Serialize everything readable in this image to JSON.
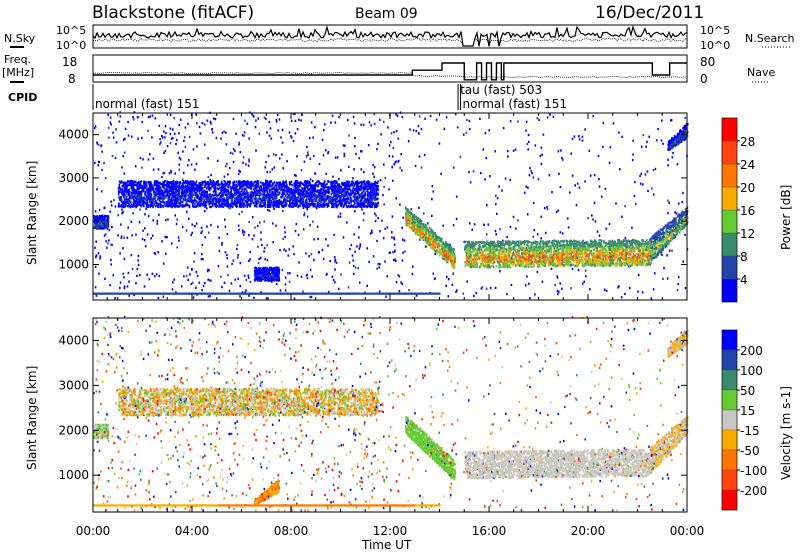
{
  "header": {
    "station": "Blackstone (fitACF)",
    "beam": "Beam 09",
    "date": "16/Dec/2011"
  },
  "noise_panel": {
    "left_label": "N.Sky",
    "right_label": "N.Search",
    "left_ticks": [
      "10^5",
      "10^0"
    ],
    "right_ticks": [
      "10^5",
      "10^0"
    ],
    "sky_level_log": 3.2,
    "search_level_log": 2.0
  },
  "freq_panel": {
    "left_label_1": "Freq.",
    "left_label_2": "[MHz]",
    "right_label": "Nave",
    "left_ticks": [
      "18",
      "8"
    ],
    "right_ticks": [
      "80",
      "0"
    ],
    "freq_steps": [
      [
        0,
        12.9,
        10.5
      ],
      [
        12.9,
        14.1,
        12.5
      ],
      [
        14.1,
        15.0,
        15.5
      ],
      [
        15.0,
        15.5,
        8.5
      ],
      [
        15.5,
        15.7,
        15.5
      ],
      [
        15.7,
        15.9,
        8.5
      ],
      [
        15.9,
        16.1,
        15.5
      ],
      [
        16.1,
        16.3,
        8.5
      ],
      [
        16.3,
        16.5,
        15.5
      ],
      [
        16.5,
        16.6,
        8.5
      ],
      [
        16.6,
        22.6,
        15.5
      ],
      [
        22.6,
        23.3,
        10.5
      ],
      [
        23.3,
        24,
        15.5
      ]
    ],
    "freq_range": [
      8,
      18
    ]
  },
  "cpid": {
    "label": "CPID",
    "segments": [
      {
        "start": 0,
        "label": "normal (fast) 151"
      },
      {
        "start": 14.75,
        "label": "tau (fast) 503"
      },
      {
        "start": 14.85,
        "label": "normal (fast) 151"
      }
    ]
  },
  "chart_data": [
    {
      "type": "heatmap",
      "name": "power",
      "ylabel": "Slant Range [km]",
      "ylim": [
        180,
        4500
      ],
      "xlim": [
        0,
        24
      ],
      "yticks": [
        "1000",
        "2000",
        "3000",
        "4000"
      ],
      "colorbar": {
        "label": "Power [dB]",
        "levels": [
          "4",
          "8",
          "12",
          "16",
          "20",
          "24",
          "28"
        ],
        "colors": [
          "#0000ff",
          "#2244aa",
          "#3a8a6e",
          "#66cc33",
          "#ffaa00",
          "#ff7700",
          "#ff4411",
          "#ff0000"
        ]
      },
      "echo_regions": [
        {
          "t": [
            12.6,
            14.6
          ],
          "r_low": [
            1900,
            850
          ],
          "r_high": [
            2300,
            1300
          ],
          "value": [
            2,
            7
          ]
        },
        {
          "t": [
            15.0,
            22.5
          ],
          "r_low": [
            900,
            950
          ],
          "r_high": [
            1500,
            1550
          ],
          "value": [
            2,
            7
          ]
        },
        {
          "t": [
            22.5,
            24.0
          ],
          "r_low": [
            1000,
            1900
          ],
          "r_high": [
            1600,
            2300
          ],
          "value": [
            1,
            5
          ]
        },
        {
          "t": [
            23.2,
            24.0
          ],
          "r_low": [
            3600,
            3900
          ],
          "r_high": [
            3800,
            4250
          ],
          "value": [
            0,
            2
          ]
        },
        {
          "t": [
            1.0,
            11.5
          ],
          "r_low": [
            2300,
            2300
          ],
          "r_high": [
            2900,
            2900
          ],
          "value": [
            0,
            1
          ]
        },
        {
          "t": [
            0.0,
            0.6
          ],
          "r_low": [
            1800,
            1800
          ],
          "r_high": [
            2100,
            2100
          ],
          "value": [
            0,
            2
          ]
        },
        {
          "t": [
            6.5,
            7.5
          ],
          "r_low": [
            600,
            600
          ],
          "r_high": [
            900,
            900
          ],
          "value": [
            0,
            1
          ]
        }
      ]
    },
    {
      "type": "heatmap",
      "name": "velocity",
      "ylabel": "Slant Range [km]",
      "ylim": [
        180,
        4500
      ],
      "xlim": [
        0,
        24
      ],
      "yticks": [
        "1000",
        "2000",
        "3000",
        "4000"
      ],
      "xticks": [
        "00:00",
        "04:00",
        "08:00",
        "12:00",
        "16:00",
        "20:00",
        "00:00"
      ],
      "xlabel": "Time UT",
      "colorbar": {
        "label": "Velocity [m s-1]",
        "levels": [
          "200",
          "100",
          "50",
          "15",
          "-15",
          "-50",
          "-100",
          "-200"
        ],
        "colors": [
          "#0000ff",
          "#2244aa",
          "#3a8a6e",
          "#66cc33",
          "#c8c8c0",
          "#ffaa00",
          "#ff7700",
          "#ff4411",
          "#ff0000"
        ]
      },
      "echo_regions": [
        {
          "t": [
            12.6,
            14.6
          ],
          "r_low": [
            1900,
            850
          ],
          "r_high": [
            2300,
            1300
          ],
          "value": [
            3,
            3
          ]
        },
        {
          "t": [
            15.0,
            22.5
          ],
          "r_low": [
            900,
            950
          ],
          "r_high": [
            1500,
            1550
          ],
          "value": [
            4,
            4
          ]
        },
        {
          "t": [
            22.5,
            24.0
          ],
          "r_low": [
            1000,
            1900
          ],
          "r_high": [
            1600,
            2300
          ],
          "value": [
            4,
            5
          ]
        },
        {
          "t": [
            23.2,
            24.0
          ],
          "r_low": [
            3600,
            3900
          ],
          "r_high": [
            3800,
            4250
          ],
          "value": [
            4,
            5
          ]
        },
        {
          "t": [
            1.0,
            11.5
          ],
          "r_low": [
            2300,
            2300
          ],
          "r_high": [
            2900,
            2900
          ],
          "value": [
            3,
            6
          ]
        },
        {
          "t": [
            0.0,
            0.6
          ],
          "r_low": [
            1800,
            1800
          ],
          "r_high": [
            2100,
            2100
          ],
          "value": [
            3,
            4
          ]
        },
        {
          "t": [
            6.5,
            7.5
          ],
          "r_low": [
            300,
            600
          ],
          "r_high": [
            400,
            900
          ],
          "value": [
            5,
            6
          ]
        }
      ]
    }
  ],
  "axis": {
    "ylabel": "Slant Range [km]",
    "power_cb_label": "Power [dB]",
    "vel_cb_label": "Velocity",
    "vel_units": "[m s",
    "vel_exp": "-1",
    "vel_close": "]"
  }
}
